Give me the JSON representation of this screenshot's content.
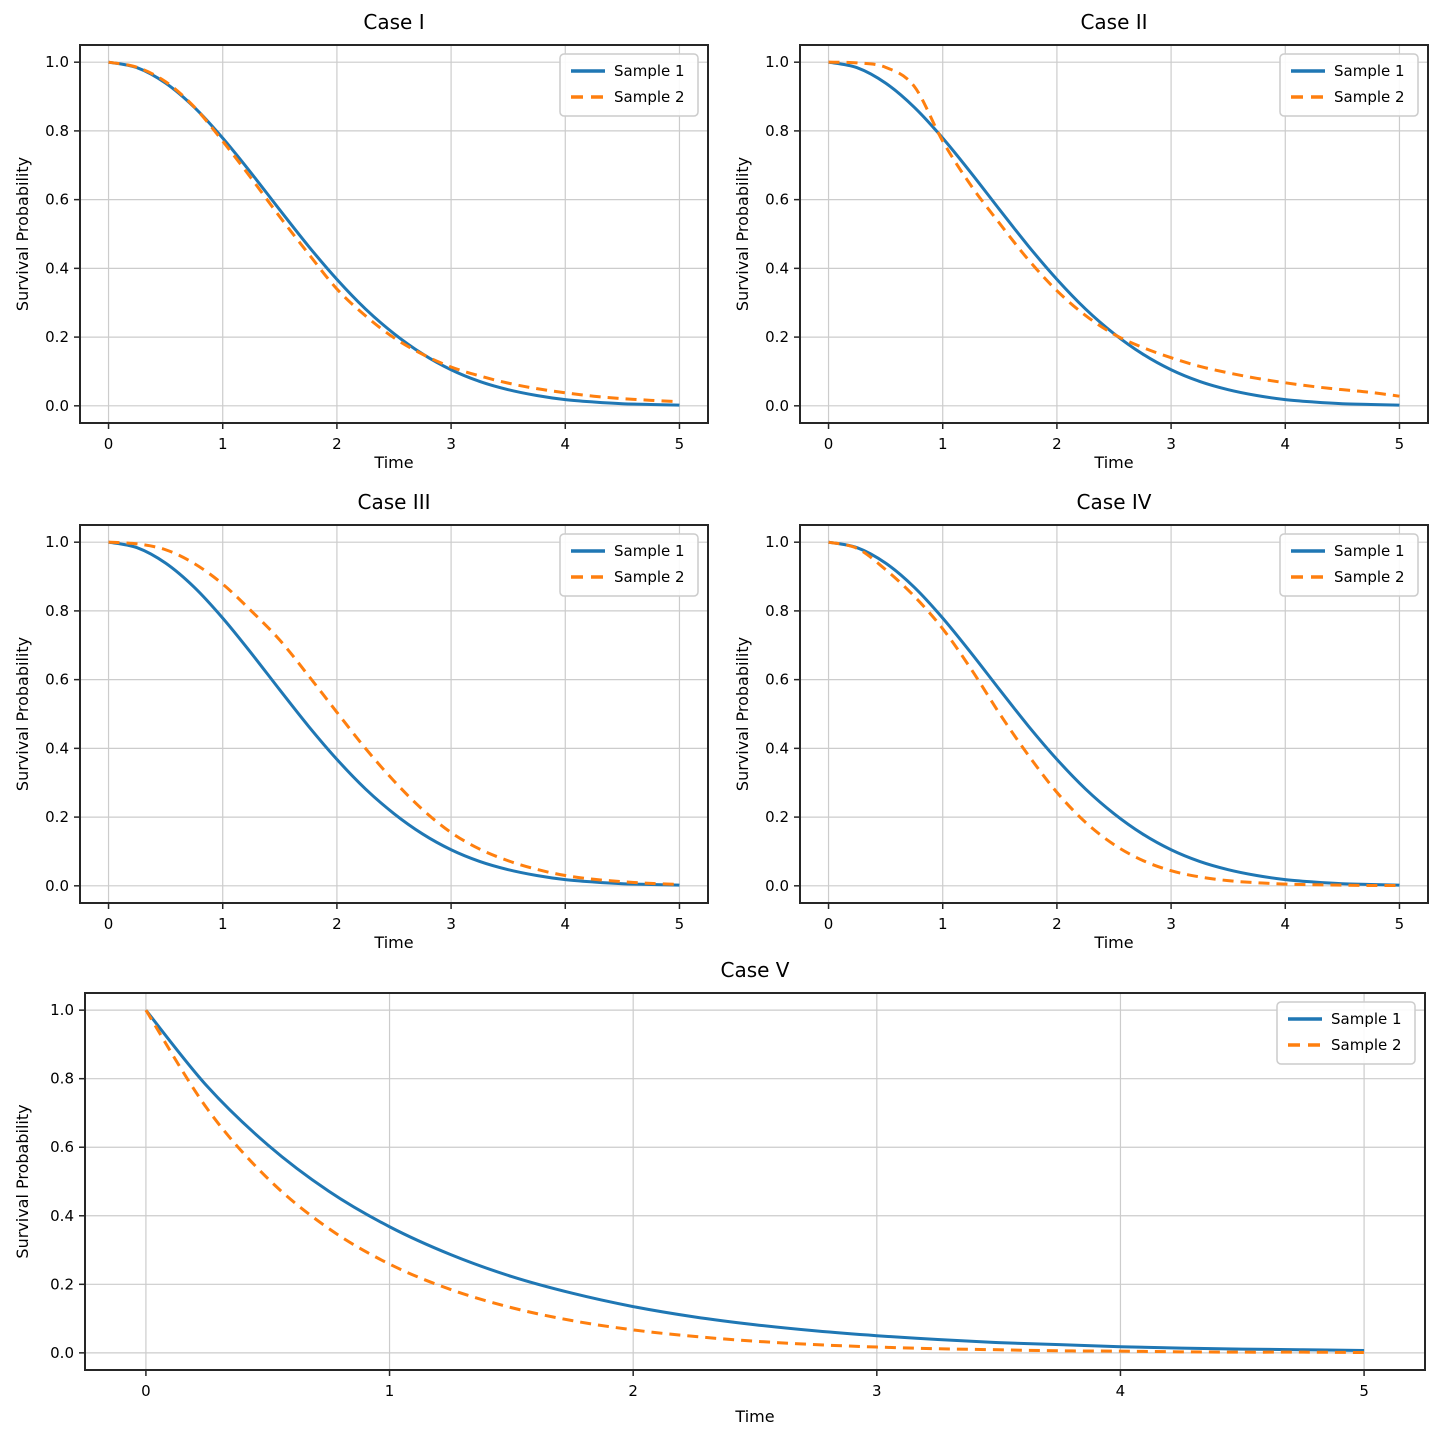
{
  "figure": {
    "background": "#ffffff",
    "grid_color": "#cccccc",
    "spine_color": "#262626",
    "tick_color": "#262626",
    "legend_background": "#ffffff",
    "legend_border_color": "#cccccc",
    "sample1_color": "#1f77b4",
    "sample2_color": "#ff7f0e"
  },
  "chart_data": [
    {
      "type": "line",
      "title": "Case I",
      "xlabel": "Time",
      "ylabel": "Survival Probability",
      "xlim": [
        -0.25,
        5.25
      ],
      "ylim": [
        -0.05,
        1.05
      ],
      "xticks": [
        0,
        1,
        2,
        3,
        4,
        5
      ],
      "yticks": [
        0,
        0.2,
        0.4,
        0.6,
        0.8,
        1
      ],
      "xtick_labels": [
        "0",
        "1",
        "2",
        "3",
        "4",
        "5"
      ],
      "ytick_labels": [
        "0.0",
        "0.2",
        "0.4",
        "0.6",
        "0.8",
        "1.0"
      ],
      "grid": true,
      "legend_position": "upper right",
      "x": [
        0,
        0.25,
        0.5,
        0.75,
        1,
        1.25,
        1.5,
        1.75,
        2,
        2.25,
        2.5,
        2.75,
        3,
        3.25,
        3.5,
        3.75,
        4,
        4.25,
        4.5,
        4.75,
        5
      ],
      "series": [
        {
          "name": "Sample 1",
          "color": "#1f77b4",
          "dash": "solid",
          "values": [
            1,
            0.984,
            0.939,
            0.869,
            0.779,
            0.677,
            0.57,
            0.465,
            0.368,
            0.282,
            0.21,
            0.151,
            0.105,
            0.071,
            0.047,
            0.03,
            0.018,
            0.011,
            0.006,
            0.004,
            0.002
          ]
        },
        {
          "name": "Sample 2",
          "color": "#ff7f0e",
          "dash": "dashed",
          "values": [
            1,
            0.985,
            0.943,
            0.87,
            0.77,
            0.662,
            0.55,
            0.443,
            0.34,
            0.262,
            0.198,
            0.15,
            0.113,
            0.087,
            0.066,
            0.05,
            0.038,
            0.028,
            0.021,
            0.016,
            0.012
          ]
        }
      ]
    },
    {
      "type": "line",
      "title": "Case II",
      "xlabel": "Time",
      "ylabel": "Survival Probability",
      "xlim": [
        -0.25,
        5.25
      ],
      "ylim": [
        -0.05,
        1.05
      ],
      "xticks": [
        0,
        1,
        2,
        3,
        4,
        5
      ],
      "yticks": [
        0,
        0.2,
        0.4,
        0.6,
        0.8,
        1
      ],
      "xtick_labels": [
        "0",
        "1",
        "2",
        "3",
        "4",
        "5"
      ],
      "ytick_labels": [
        "0.0",
        "0.2",
        "0.4",
        "0.6",
        "0.8",
        "1.0"
      ],
      "grid": true,
      "legend_position": "upper right",
      "x": [
        0,
        0.25,
        0.5,
        0.75,
        1,
        1.25,
        1.5,
        1.75,
        2,
        2.25,
        2.5,
        2.75,
        3,
        3.25,
        3.5,
        3.75,
        4,
        4.25,
        4.5,
        4.75,
        5
      ],
      "series": [
        {
          "name": "Sample 1",
          "color": "#1f77b4",
          "dash": "solid",
          "values": [
            1,
            0.984,
            0.939,
            0.869,
            0.779,
            0.677,
            0.57,
            0.465,
            0.368,
            0.282,
            0.21,
            0.151,
            0.105,
            0.071,
            0.047,
            0.03,
            0.018,
            0.011,
            0.006,
            0.004,
            0.002
          ]
        },
        {
          "name": "Sample 2",
          "color": "#ff7f0e",
          "dash": "dashed",
          "values": [
            1,
            0.998,
            0.985,
            0.93,
            0.77,
            0.64,
            0.53,
            0.425,
            0.335,
            0.263,
            0.208,
            0.17,
            0.14,
            0.115,
            0.096,
            0.08,
            0.067,
            0.056,
            0.047,
            0.039,
            0.028
          ]
        }
      ]
    },
    {
      "type": "line",
      "title": "Case III",
      "xlabel": "Time",
      "ylabel": "Survival Probability",
      "xlim": [
        -0.25,
        5.25
      ],
      "ylim": [
        -0.05,
        1.05
      ],
      "xticks": [
        0,
        1,
        2,
        3,
        4,
        5
      ],
      "yticks": [
        0,
        0.2,
        0.4,
        0.6,
        0.8,
        1
      ],
      "xtick_labels": [
        "0",
        "1",
        "2",
        "3",
        "4",
        "5"
      ],
      "ytick_labels": [
        "0.0",
        "0.2",
        "0.4",
        "0.6",
        "0.8",
        "1.0"
      ],
      "grid": true,
      "legend_position": "upper right",
      "x": [
        0,
        0.25,
        0.5,
        0.75,
        1,
        1.25,
        1.5,
        1.75,
        2,
        2.25,
        2.5,
        2.75,
        3,
        3.25,
        3.5,
        3.75,
        4,
        4.25,
        4.5,
        4.75,
        5
      ],
      "series": [
        {
          "name": "Sample 1",
          "color": "#1f77b4",
          "dash": "solid",
          "values": [
            1,
            0.984,
            0.939,
            0.869,
            0.779,
            0.677,
            0.57,
            0.465,
            0.368,
            0.282,
            0.21,
            0.151,
            0.105,
            0.071,
            0.047,
            0.03,
            0.018,
            0.011,
            0.006,
            0.004,
            0.002
          ]
        },
        {
          "name": "Sample 2",
          "color": "#ff7f0e",
          "dash": "dashed",
          "values": [
            1,
            0.995,
            0.978,
            0.938,
            0.878,
            0.8,
            0.715,
            0.612,
            0.505,
            0.4,
            0.305,
            0.222,
            0.155,
            0.107,
            0.073,
            0.048,
            0.03,
            0.019,
            0.012,
            0.007,
            0.004
          ]
        }
      ]
    },
    {
      "type": "line",
      "title": "Case IV",
      "xlabel": "Time",
      "ylabel": "Survival Probability",
      "xlim": [
        -0.25,
        5.25
      ],
      "ylim": [
        -0.05,
        1.05
      ],
      "xticks": [
        0,
        1,
        2,
        3,
        4,
        5
      ],
      "yticks": [
        0,
        0.2,
        0.4,
        0.6,
        0.8,
        1
      ],
      "xtick_labels": [
        "0",
        "1",
        "2",
        "3",
        "4",
        "5"
      ],
      "ytick_labels": [
        "0.0",
        "0.2",
        "0.4",
        "0.6",
        "0.8",
        "1.0"
      ],
      "grid": true,
      "legend_position": "upper right",
      "x": [
        0,
        0.25,
        0.5,
        0.75,
        1,
        1.25,
        1.5,
        1.75,
        2,
        2.25,
        2.5,
        2.75,
        3,
        3.25,
        3.5,
        3.75,
        4,
        4.25,
        4.5,
        4.75,
        5
      ],
      "series": [
        {
          "name": "Sample 1",
          "color": "#1f77b4",
          "dash": "solid",
          "values": [
            1,
            0.984,
            0.939,
            0.869,
            0.779,
            0.677,
            0.57,
            0.465,
            0.368,
            0.282,
            0.21,
            0.151,
            0.105,
            0.071,
            0.047,
            0.03,
            0.018,
            0.011,
            0.006,
            0.004,
            0.002
          ]
        },
        {
          "name": "Sample 2",
          "color": "#ff7f0e",
          "dash": "dashed",
          "values": [
            1,
            0.982,
            0.92,
            0.843,
            0.748,
            0.63,
            0.5,
            0.38,
            0.272,
            0.185,
            0.12,
            0.074,
            0.044,
            0.026,
            0.015,
            0.009,
            0.005,
            0.003,
            0.002,
            0.001,
            0.001
          ]
        }
      ]
    },
    {
      "type": "line",
      "title": "Case V",
      "xlabel": "Time",
      "ylabel": "Survival Probability",
      "xlim": [
        -0.25,
        5.25
      ],
      "ylim": [
        -0.05,
        1.05
      ],
      "xticks": [
        0,
        1,
        2,
        3,
        4,
        5
      ],
      "yticks": [
        0,
        0.2,
        0.4,
        0.6,
        0.8,
        1
      ],
      "xtick_labels": [
        "0",
        "1",
        "2",
        "3",
        "4",
        "5"
      ],
      "ytick_labels": [
        "0.0",
        "0.2",
        "0.4",
        "0.6",
        "0.8",
        "1.0"
      ],
      "grid": true,
      "legend_position": "upper right",
      "x": [
        0,
        0.25,
        0.5,
        0.75,
        1,
        1.25,
        1.5,
        1.75,
        2,
        2.25,
        2.5,
        2.75,
        3,
        3.25,
        3.5,
        3.75,
        4,
        4.25,
        4.5,
        4.75,
        5
      ],
      "series": [
        {
          "name": "Sample 1",
          "color": "#1f77b4",
          "dash": "solid",
          "values": [
            1,
            0.779,
            0.607,
            0.472,
            0.368,
            0.287,
            0.223,
            0.174,
            0.135,
            0.105,
            0.082,
            0.064,
            0.05,
            0.039,
            0.03,
            0.024,
            0.018,
            0.014,
            0.011,
            0.009,
            0.007
          ]
        },
        {
          "name": "Sample 2",
          "color": "#ff7f0e",
          "dash": "dashed",
          "values": [
            1,
            0.714,
            0.509,
            0.363,
            0.259,
            0.185,
            0.132,
            0.094,
            0.067,
            0.048,
            0.034,
            0.024,
            0.017,
            0.012,
            0.009,
            0.006,
            0.005,
            0.003,
            0.002,
            0.002,
            0.001
          ]
        }
      ]
    }
  ]
}
